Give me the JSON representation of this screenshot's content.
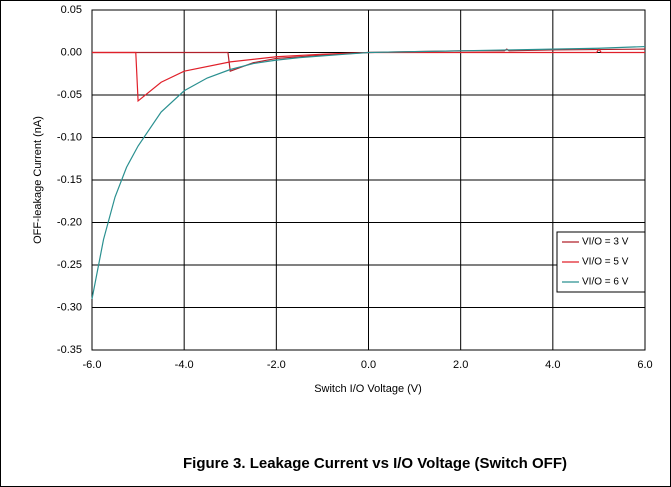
{
  "chart_data": {
    "type": "line",
    "title": "Figure 3. Leakage Current vs I/O Voltage (Switch OFF)",
    "x_label": "Switch I/O Voltage (V)",
    "y_label": "OFF-leakage Current (nA)",
    "xlim": [
      -6,
      6
    ],
    "xticks": [
      {
        "value": -6,
        "label": "-6.0"
      },
      {
        "value": -4,
        "label": "-4.0"
      },
      {
        "value": -2,
        "label": "-2.0"
      },
      {
        "value": 0,
        "label": "0.0"
      },
      {
        "value": 2,
        "label": "2.0"
      },
      {
        "value": 4,
        "label": "4.0"
      },
      {
        "value": 6,
        "label": "6.0"
      }
    ],
    "ylim": [
      -0.35,
      0.05
    ],
    "yticks": [
      0.05,
      {
        "value": 0,
        "label": "0.00"
      },
      -0.05,
      {
        "value": -0.1,
        "label": "-0.10"
      },
      -0.15,
      {
        "value": -0.2,
        "label": "-0.20"
      },
      -0.25,
      {
        "value": -0.3,
        "label": "-0.30"
      },
      -0.35
    ],
    "grid": true,
    "legend": "right",
    "series": [
      {
        "name": "VI/O = 3 V",
        "color": "#b0202a",
        "x": [
          -6,
          -3.05,
          -3.0,
          -2.5,
          -2,
          -1,
          0,
          1,
          2,
          2.95,
          3.0,
          3.05,
          4,
          6
        ],
        "values": [
          0,
          0,
          -0.022,
          -0.012,
          -0.007,
          -0.003,
          0,
          0.001,
          0.002,
          0.002,
          0.004,
          0.002,
          0.003,
          0.004
        ]
      },
      {
        "name": "VI/O = 5 V",
        "color": "#e0202a",
        "x": [
          -6,
          -5.05,
          -5.0,
          -4.5,
          -4,
          -3,
          -2,
          -1,
          0,
          4.95,
          5.0,
          5.05,
          6
        ],
        "values": [
          0,
          0,
          -0.057,
          -0.035,
          -0.022,
          -0.011,
          -0.005,
          -0.002,
          0,
          0,
          0.004,
          0,
          0
        ]
      },
      {
        "name": "VI/O = 6 V",
        "color": "#2a9090",
        "x": [
          -6,
          -5.75,
          -5.5,
          -5.25,
          -5,
          -4.5,
          -4,
          -3.5,
          -3,
          -2.5,
          -2,
          -1.5,
          -1,
          -0.5,
          0,
          1,
          2,
          3,
          4,
          5,
          6
        ],
        "values": [
          -0.29,
          -0.22,
          -0.17,
          -0.135,
          -0.11,
          -0.07,
          -0.045,
          -0.03,
          -0.02,
          -0.013,
          -0.009,
          -0.006,
          -0.004,
          -0.002,
          0,
          0.001,
          0.002,
          0.003,
          0.004,
          0.005,
          0.007
        ]
      }
    ]
  }
}
